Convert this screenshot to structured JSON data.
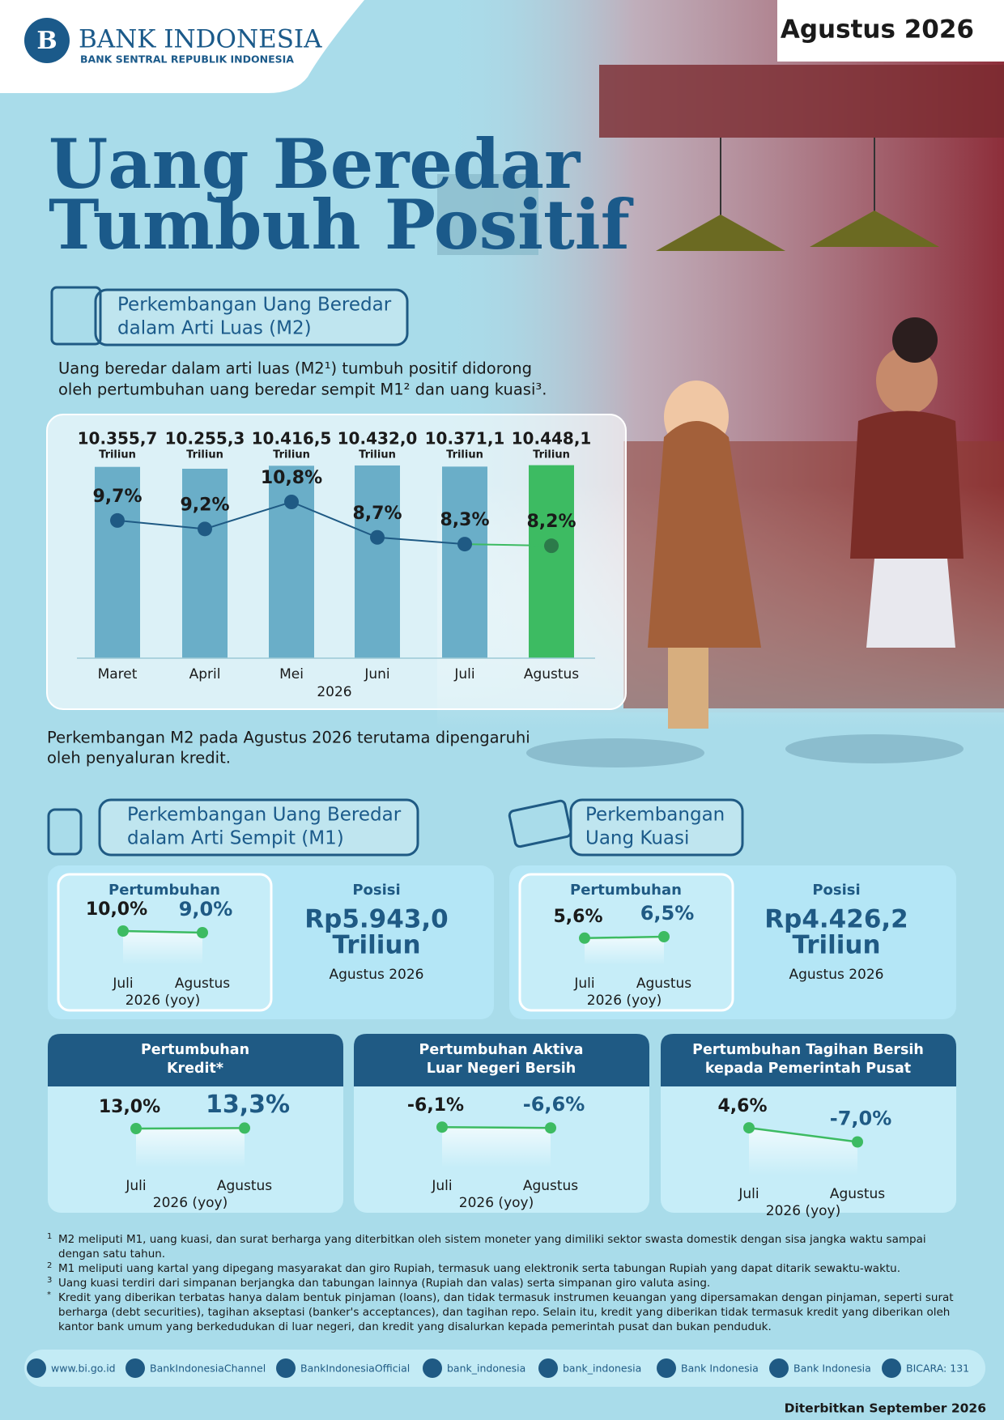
{
  "header": {
    "logo_title": "BANK INDONESIA",
    "logo_subtitle": "BANK SENTRAL REPUBLIK INDONESIA",
    "period": "Agustus 2026"
  },
  "title": [
    "Uang Beredar",
    "Tumbuh Positif"
  ],
  "m2": {
    "heading": [
      "Perkembangan Uang Beredar",
      "dalam Arti Luas (M2)"
    ],
    "intro": [
      "Uang beredar dalam arti luas (M2¹) tumbuh positif didorong",
      "oleh pertumbuhan uang beredar sempit M1² dan uang kuasi³."
    ],
    "chart": {
      "type": "bar",
      "categories": [
        "Maret",
        "April",
        "Mei",
        "Juni",
        "Juli",
        "Agustus"
      ],
      "x_label": "2026",
      "unit": "Triliun",
      "values": [
        10355.7,
        10255.3,
        10416.5,
        10432.0,
        10371.1,
        10448.1
      ],
      "value_labels": [
        "10.355,7",
        "10.255,3",
        "10.416,5",
        "10.432,0",
        "10.371,1",
        "10.448,1"
      ],
      "bar_colors": [
        "#6aaec8",
        "#6aaec8",
        "#6aaec8",
        "#6aaec8",
        "#6aaec8",
        "#3dbb62"
      ],
      "ylim": [
        0,
        11000
      ],
      "growth": {
        "values": [
          9.7,
          9.2,
          10.8,
          8.7,
          8.3,
          8.2
        ],
        "value_labels": [
          "9,7%",
          "9,2%",
          "10,8%",
          "8,7%",
          "8,3%",
          "8,2%"
        ],
        "ylim": [
          6,
          12
        ],
        "line_color": "#1f5a84",
        "highlight_color": "#3dbb62"
      }
    },
    "note": [
      "Perkembangan M2 pada Agustus 2026 terutama dipengaruhi",
      "oleh penyaluran kredit."
    ]
  },
  "m1": {
    "heading": [
      "Perkembangan Uang Beredar",
      "dalam Arti Sempit (M1)"
    ],
    "growth": {
      "label": "Pertumbuhan",
      "categories": [
        "Juli",
        "Agustus"
      ],
      "x_label": "2026 (yoy)",
      "values": [
        10.0,
        9.0
      ],
      "value_labels": [
        "10,0%",
        "9,0%"
      ],
      "ylim": [
        0,
        20
      ],
      "color": "#3dbb62"
    },
    "position": {
      "label": "Posisi",
      "value": "Rp5.943,0",
      "unit": "Triliun",
      "date": "Agustus 2026"
    }
  },
  "quasi": {
    "heading": [
      "Perkembangan",
      "Uang Kuasi"
    ],
    "growth": {
      "label": "Pertumbuhan",
      "categories": [
        "Juli",
        "Agustus"
      ],
      "x_label": "2026 (yoy)",
      "values": [
        5.6,
        6.5
      ],
      "value_labels": [
        "5,6%",
        "6,5%"
      ],
      "ylim": [
        0,
        20
      ],
      "color": "#3dbb62"
    },
    "position": {
      "label": "Posisi",
      "value": "Rp4.426,2",
      "unit": "Triliun",
      "date": "Agustus 2026"
    }
  },
  "indicators": [
    {
      "title": [
        "Pertumbuhan",
        "Kredit*"
      ],
      "categories": [
        "Juli",
        "Agustus"
      ],
      "x_label": "2026 (yoy)",
      "values": [
        13.0,
        13.3
      ],
      "value_labels": [
        "13,0%",
        "13,3%"
      ],
      "ylim": [
        0,
        20
      ],
      "color": "#3dbb62"
    },
    {
      "title": [
        "Pertumbuhan Aktiva",
        "Luar Negeri Bersih"
      ],
      "categories": [
        "Juli",
        "Agustus"
      ],
      "x_label": "2026 (yoy)",
      "values": [
        -6.1,
        -6.6
      ],
      "value_labels": [
        "-6,1%",
        "-6,6%"
      ],
      "ylim": [
        -20,
        0
      ],
      "color": "#3dbb62"
    },
    {
      "title": [
        "Pertumbuhan Tagihan Bersih",
        "kepada Pemerintah Pusat"
      ],
      "categories": [
        "Juli",
        "Agustus"
      ],
      "x_label": "2026 (yoy)",
      "values": [
        4.6,
        -7.0
      ],
      "value_labels": [
        "4,6%",
        "-7,0%"
      ],
      "ylim": [
        -20,
        20
      ],
      "color": "#3dbb62"
    }
  ],
  "footnotes": [
    {
      "marker": "1",
      "text": "M2 meliputi M1, uang kuasi, dan surat berharga yang diterbitkan oleh sistem moneter yang dimiliki sektor swasta domestik dengan sisa jangka waktu sampai dengan satu tahun."
    },
    {
      "marker": "2",
      "text": "M1 meliputi uang kartal yang dipegang masyarakat dan giro Rupiah, termasuk uang elektronik serta tabungan Rupiah yang dapat ditarik sewaktu-waktu."
    },
    {
      "marker": "3",
      "text": "Uang kuasi terdiri dari simpanan berjangka dan tabungan lainnya (Rupiah dan valas) serta simpanan giro valuta asing."
    },
    {
      "marker": "*",
      "text": "Kredit yang diberikan terbatas hanya dalam bentuk pinjaman (loans), dan tidak termasuk instrumen keuangan yang dipersamakan dengan pinjaman, seperti surat berharga (debt securities), tagihan akseptasi (banker's acceptances), dan tagihan repo. Selain itu, kredit yang diberikan tidak termasuk kredit yang diberikan oleh kantor bank umum yang berkedudukan di luar negeri, dan kredit yang disalurkan kepada pemerintah pusat dan bukan penduduk."
    }
  ],
  "socials": [
    "www.bi.go.id",
    "BankIndonesiaChannel",
    "BankIndonesiaOfficial",
    "bank_indonesia",
    "bank_indonesia",
    "Bank Indonesia",
    "Bank Indonesia",
    "BICARA: 131"
  ],
  "published": "Diterbitkan September 2026"
}
